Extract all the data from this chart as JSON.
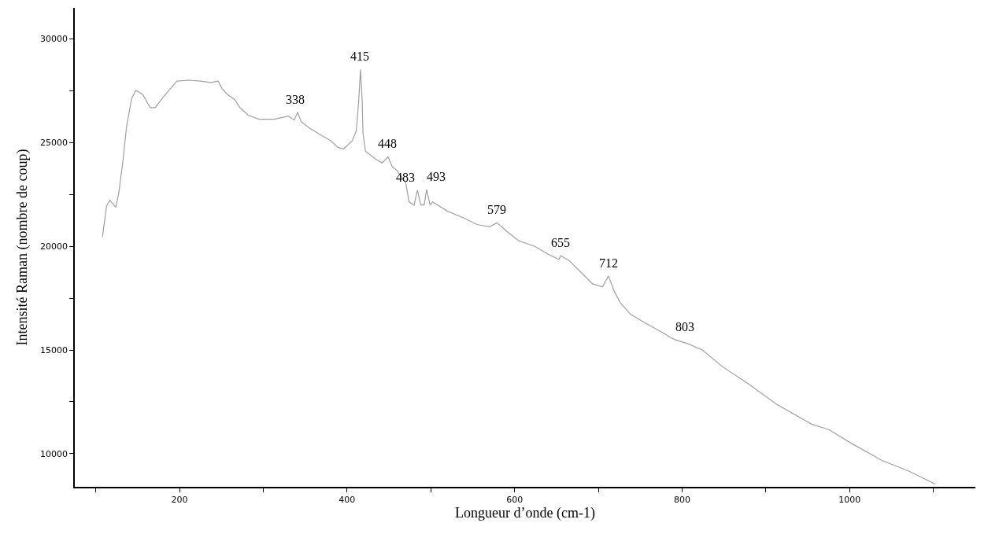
{
  "chart_data": {
    "type": "line",
    "xlabel": "Longueur d’onde (cm-1)",
    "ylabel": "Intensité Raman (nombre de coup)",
    "xlim": [
      75,
      1150
    ],
    "ylim": [
      8400,
      31500
    ],
    "xticks": [
      {
        "value": 100,
        "label": null
      },
      200,
      {
        "value": 300,
        "label": null
      },
      400,
      {
        "value": 500,
        "label": null
      },
      600,
      {
        "value": 700,
        "label": null
      },
      800,
      {
        "value": 900,
        "label": null
      },
      1000,
      {
        "value": 1100,
        "label": null
      }
    ],
    "yticks": [
      10000,
      {
        "value": 12500,
        "label": null
      },
      15000,
      {
        "value": 17500,
        "label": null
      },
      20000,
      {
        "value": 22500,
        "label": null
      },
      25000,
      {
        "value": 27500,
        "label": null
      },
      30000
    ],
    "marker": "none",
    "line_style": "solid",
    "series": [
      {
        "color": "#a0a0a0",
        "x": [
          108,
          113,
          117,
          124,
          127.5,
          132,
          137,
          143,
          148,
          156,
          165,
          171,
          181,
          197,
          211,
          225,
          237,
          246,
          251,
          257,
          266,
          272,
          282,
          295,
          313,
          330,
          337,
          341,
          345,
          355,
          368,
          381,
          389,
          396,
          406,
          411,
          414,
          416,
          418,
          419,
          422,
          434,
          442,
          449,
          454,
          459,
          470,
          474,
          480,
          484,
          488,
          492,
          495,
          499,
          502,
          520,
          538,
          555,
          570,
          579,
          593,
          605,
          624,
          640,
          653,
          655,
          665,
          681,
          693,
          705,
          712,
          719,
          726,
          738,
          754,
          779,
          786,
          792,
          807,
          824,
          849,
          881,
          912,
          954,
          975,
          1001,
          1039,
          1070,
          1102
        ],
        "values": [
          20450,
          21950,
          22220,
          21880,
          22560,
          23950,
          25830,
          27140,
          27520,
          27330,
          26690,
          26690,
          27220,
          27970,
          28010,
          27970,
          27900,
          27970,
          27600,
          27330,
          27070,
          26690,
          26320,
          26130,
          26130,
          26280,
          26090,
          26470,
          26020,
          25710,
          25380,
          25080,
          24770,
          24700,
          25080,
          25560,
          27070,
          28530,
          27070,
          25450,
          24590,
          24210,
          24020,
          24320,
          23830,
          23680,
          23080,
          22140,
          21990,
          22710,
          21990,
          21990,
          22740,
          21990,
          22140,
          21690,
          21390,
          21050,
          20940,
          21130,
          20640,
          20260,
          20000,
          19620,
          19360,
          19550,
          19320,
          18680,
          18190,
          18040,
          18570,
          17820,
          17290,
          16730,
          16350,
          15790,
          15600,
          15490,
          15300,
          15000,
          14170,
          13310,
          12400,
          11430,
          11160,
          10520,
          9660,
          9170,
          8530
        ]
      }
    ],
    "annotations": [
      {
        "text": "338",
        "x": 338,
        "y": 26470
      },
      {
        "text": "415",
        "x": 415,
        "y": 28530
      },
      {
        "text": "448",
        "x": 448,
        "y": 24320
      },
      {
        "text": "483",
        "x": 483,
        "y": 22710
      },
      {
        "text": "493",
        "x": 493,
        "y": 22740
      },
      {
        "text": "579",
        "x": 579,
        "y": 21130
      },
      {
        "text": "655",
        "x": 655,
        "y": 19550
      },
      {
        "text": "712",
        "x": 712,
        "y": 18570
      },
      {
        "text": "803",
        "x": 803,
        "y": 15490
      }
    ]
  }
}
